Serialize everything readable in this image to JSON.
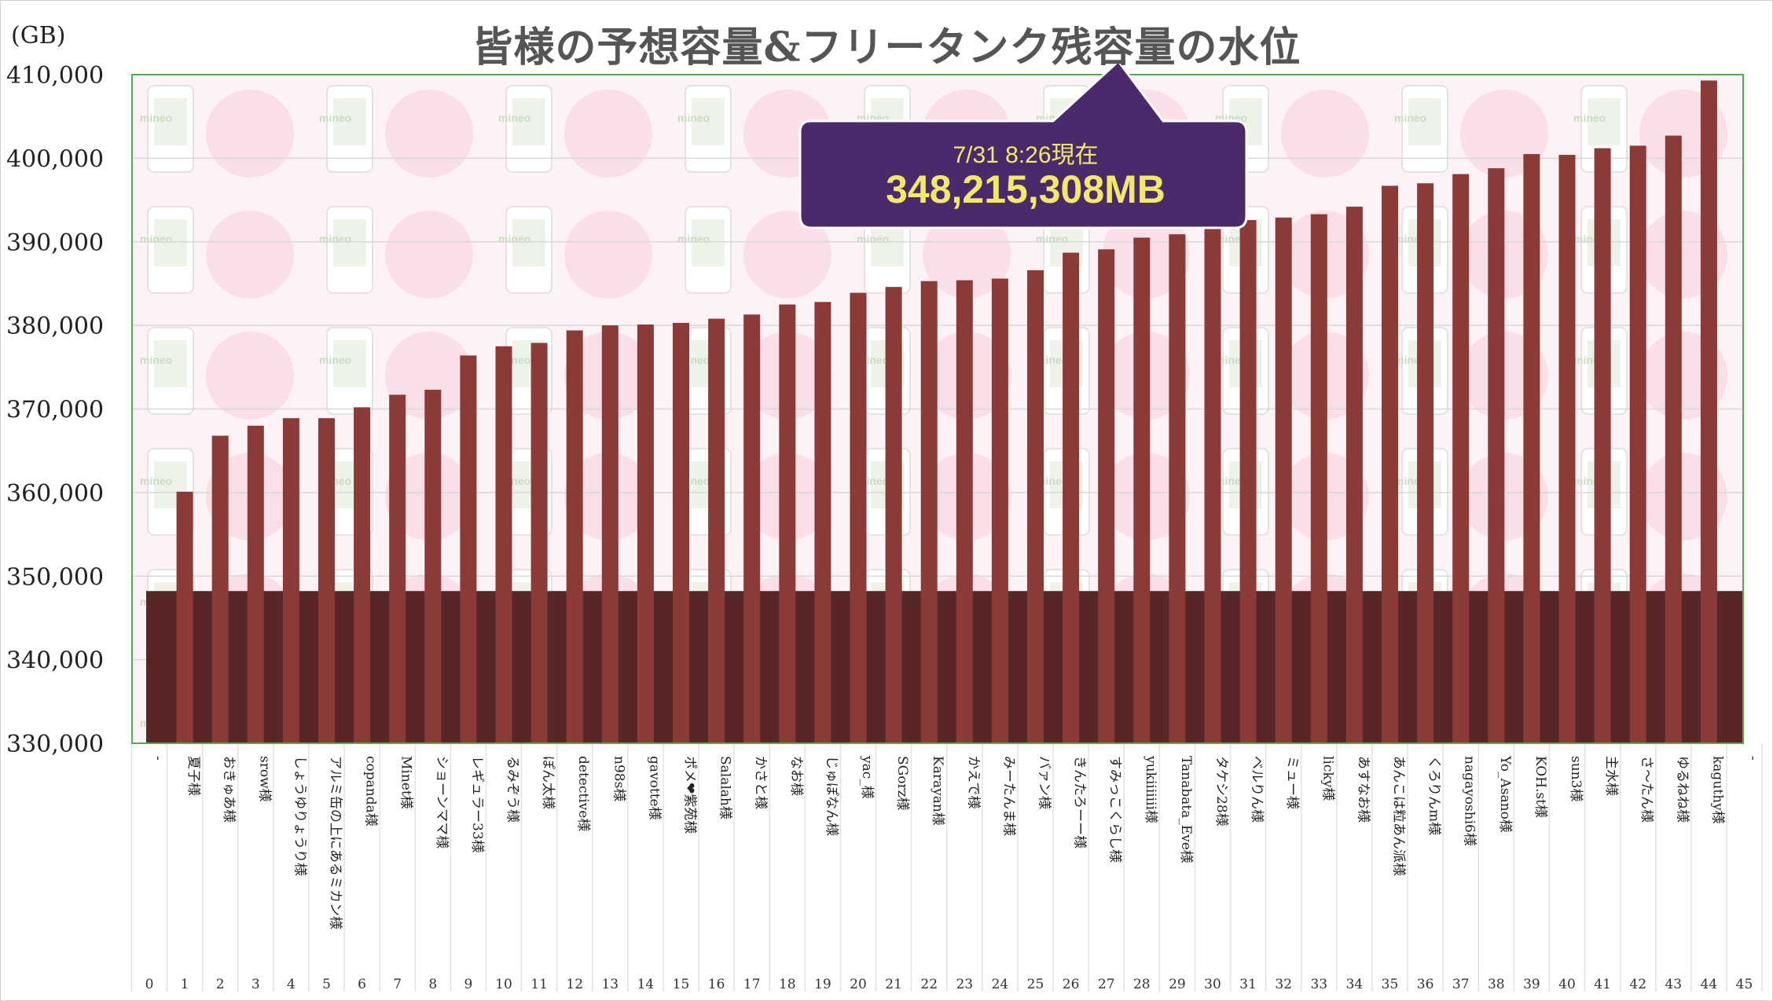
{
  "unit_label": "(GB)",
  "callout": {
    "line1": "7/31 8:26現在",
    "line2": "348,215,308MB"
  },
  "colors": {
    "bar": "#8b3a38",
    "tank": "#582626",
    "plot_border": "#4caf50",
    "callout_bg": "#4a2a6a",
    "callout_text": "#f2e96a",
    "watermark": "#f7d9e3"
  },
  "watermark_text": "mineo",
  "chart_data": {
    "type": "bar",
    "title": "皆様の予想容量&フリータンク残容量の水位",
    "ylabel": "(GB)",
    "ylim": [
      330000,
      410000
    ],
    "yticks": [
      "330,000",
      "340,000",
      "350,000",
      "360,000",
      "370,000",
      "380,000",
      "390,000",
      "400,000",
      "410,000"
    ],
    "grid": true,
    "tank_level": 348215,
    "index_labels": [
      "0",
      "1",
      "2",
      "3",
      "4",
      "5",
      "6",
      "7",
      "8",
      "9",
      "10",
      "11",
      "12",
      "13",
      "14",
      "15",
      "16",
      "17",
      "18",
      "19",
      "20",
      "21",
      "22",
      "23",
      "24",
      "25",
      "26",
      "27",
      "28",
      "29",
      "30",
      "31",
      "32",
      "33",
      "34",
      "35",
      "36",
      "37",
      "38",
      "39",
      "40",
      "41",
      "42",
      "43",
      "44",
      "45"
    ],
    "categories": [
      "-",
      "夏子様",
      "おきゅあ様",
      "srow様",
      "しょうゆりょうり様",
      "アルミ缶の上にあるミカン様",
      "copanda様",
      "Minet様",
      "ショーンママ様",
      "レギュラー33様",
      "るみぞう様",
      "ぽん太様",
      "detective様",
      "n98s様",
      "gavotte様",
      "ポメ❤紫苑様",
      "Salalah様",
      "かさと様",
      "なお様",
      "じゅぽなん様",
      "yac_様",
      "SGorz様",
      "Karayan様",
      "かえで様",
      "みーたんま様",
      "バァン様",
      "きんたろーー様",
      "すみっこくらし様",
      "yukiiiiiii様",
      "Tanabata_Eve様",
      "タケシ28様",
      "ベルりん様",
      "ミュー様",
      "licky様",
      "あすなお様",
      "あんこは粒あん派様",
      "くろりんm様",
      "nagayoshi6様",
      "Yo_Asano様",
      "KOH.st様",
      "sun3様",
      "主水様",
      "さ〜たん様",
      "ゆるねね様",
      "kaguthy様",
      "-"
    ],
    "values": [
      null,
      360100,
      366800,
      368000,
      368900,
      368900,
      370200,
      371700,
      372300,
      376400,
      377500,
      377900,
      379400,
      380000,
      380100,
      380300,
      380800,
      381300,
      382500,
      382800,
      383900,
      384600,
      385300,
      385400,
      385600,
      386600,
      388700,
      389100,
      390500,
      390900,
      392600,
      392600,
      392900,
      393300,
      394200,
      396700,
      397000,
      398100,
      398800,
      400500,
      400400,
      401200,
      401500,
      402700,
      409300,
      null
    ]
  }
}
